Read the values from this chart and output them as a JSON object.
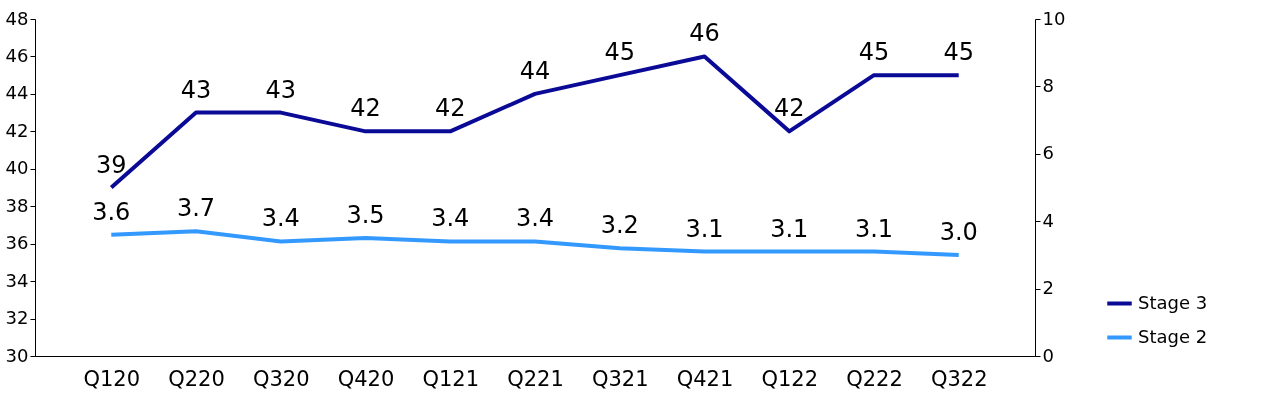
{
  "chart_data": {
    "type": "line",
    "categories": [
      "Q120",
      "Q220",
      "Q320",
      "Q420",
      "Q121",
      "Q221",
      "Q321",
      "Q421",
      "Q122",
      "Q222",
      "Q322"
    ],
    "series": [
      {
        "name": "Stage 3",
        "color": "#0a0a96",
        "values": [
          39,
          43,
          43,
          42,
          42,
          44,
          45,
          46,
          42,
          45,
          45
        ],
        "value_labels": [
          "39",
          "43",
          "43",
          "42",
          "42",
          "44",
          "45",
          "46",
          "42",
          "45",
          "45"
        ]
      },
      {
        "name": "Stage 2",
        "color": "#3399ff",
        "axis": "y2",
        "values": [
          3.6,
          3.7,
          3.4,
          3.5,
          3.4,
          3.4,
          3.2,
          3.1,
          3.1,
          3.1,
          3.0
        ],
        "value_labels": [
          "3.6",
          "3.7",
          "3.4",
          "3.5",
          "3.4",
          "3.4",
          "3.2",
          "3.1",
          "3.1",
          "3.1",
          "3.0"
        ]
      }
    ],
    "ylim": [
      30,
      48
    ],
    "yticks": [
      30,
      32,
      34,
      36,
      38,
      40,
      42,
      44,
      46,
      48
    ],
    "y2lim": [
      0,
      10
    ],
    "y2ticks": [
      0,
      2,
      4,
      6,
      8,
      10
    ],
    "grid": false,
    "legend": "bottom right",
    "marker": "none",
    "line_style": "solid"
  }
}
